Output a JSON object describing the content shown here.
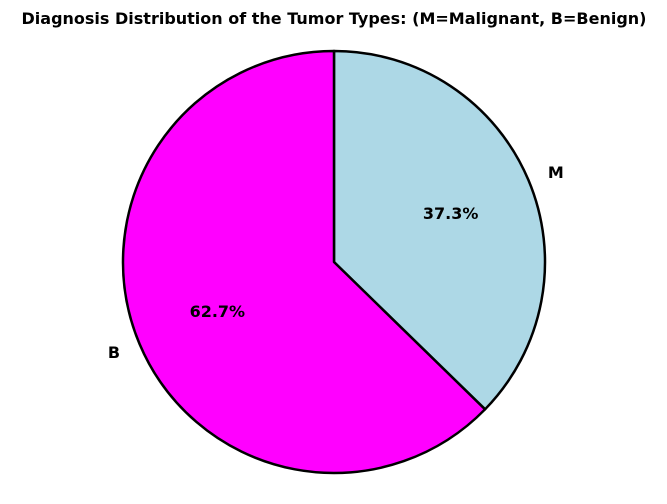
{
  "chart_data": {
    "type": "pie",
    "title": "Diagnosis Distribution of the Tumor Types: (M=Malignant, B=Benign)",
    "start_angle_deg": 90,
    "direction": "clockwise",
    "slices": [
      {
        "label": "M",
        "value": 37.3,
        "pct_label": "37.3%",
        "color": "#add8e6"
      },
      {
        "label": "B",
        "value": 62.7,
        "pct_label": "62.7%",
        "color": "#ff00ff"
      }
    ],
    "edge_color": "#000000",
    "legend": "none"
  }
}
